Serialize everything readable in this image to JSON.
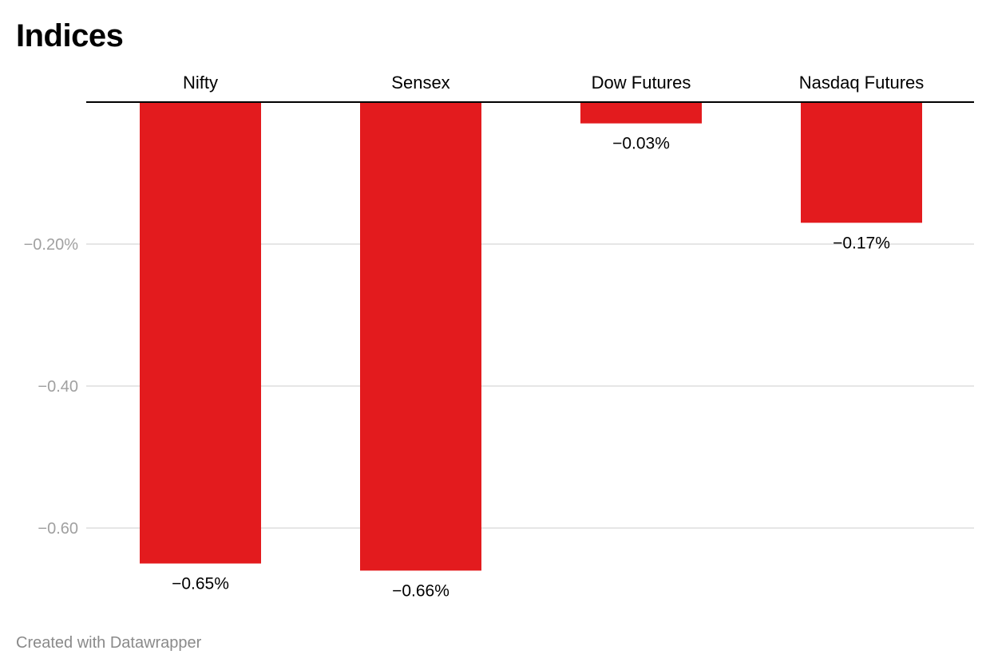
{
  "chart_data": {
    "type": "bar",
    "title": "Indices",
    "categories": [
      "Nifty",
      "Sensex",
      "Dow Futures",
      "Nasdaq Futures"
    ],
    "values": [
      -0.65,
      -0.66,
      -0.03,
      -0.17
    ],
    "data_labels": [
      "−0.65%",
      "−0.66%",
      "−0.03%",
      "−0.17%"
    ],
    "y_ticks": [
      {
        "value": -0.2,
        "label": "−0.20%"
      },
      {
        "value": -0.4,
        "label": "−0.40"
      },
      {
        "value": -0.6,
        "label": "−0.60"
      }
    ],
    "ylim": [
      -0.66,
      0
    ],
    "xlabel": "",
    "ylabel": "",
    "grid": true,
    "category_labels_position": "top",
    "bar_color": "#e31b1e",
    "gridline_color": "#dddddd",
    "axis_line_color": "#000000",
    "tick_label_color": "#a0a0a0"
  },
  "footer": {
    "credit": "Created with Datawrapper"
  }
}
